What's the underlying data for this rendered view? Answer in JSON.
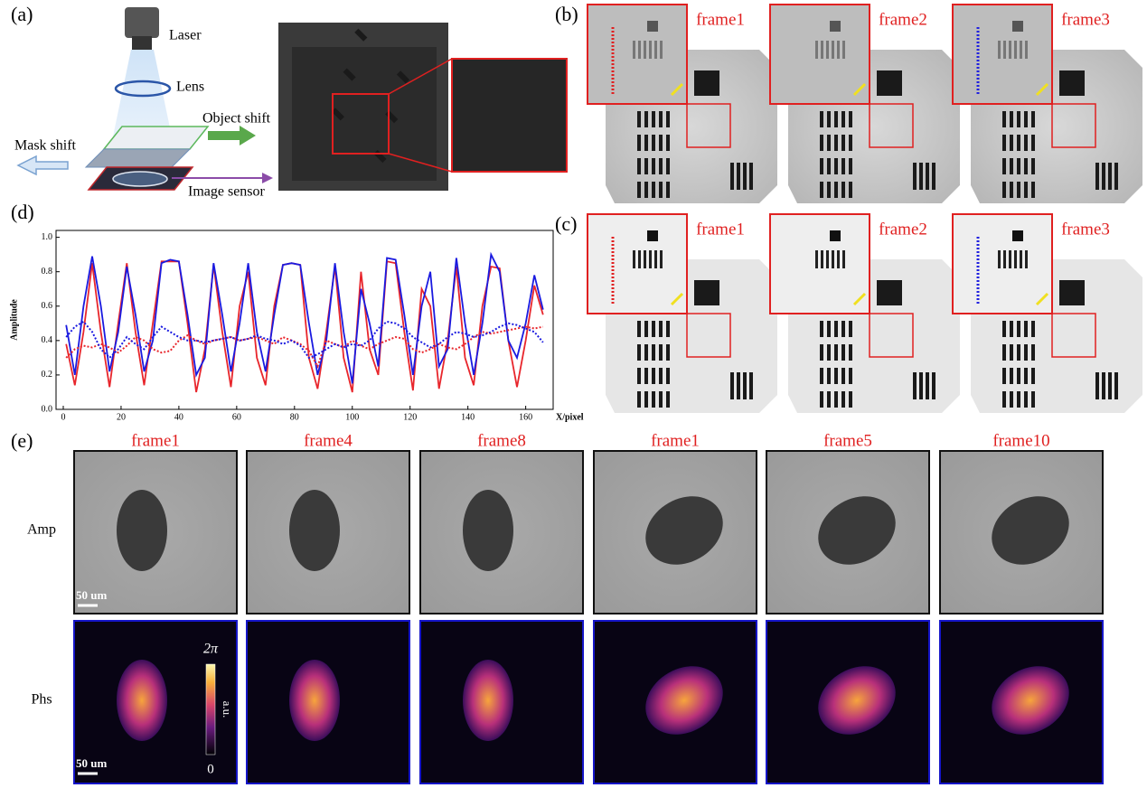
{
  "figure": {
    "panel_a": {
      "label": "(a)",
      "laser": "Laser",
      "lens": "Lens",
      "object_shift": "Object shift",
      "mask_shift": "Mask shift",
      "image_sensor": "Image sensor"
    },
    "panel_b": {
      "label": "(b)",
      "frames": [
        "frame1",
        "frame2",
        "frame3"
      ]
    },
    "panel_c": {
      "label": "(c)",
      "frames": [
        "frame1",
        "frame2",
        "frame3"
      ]
    },
    "panel_d": {
      "label": "(d)"
    },
    "panel_e": {
      "label": "(e)",
      "frames": [
        "frame1",
        "frame4",
        "frame8",
        "frame1",
        "frame5",
        "frame10"
      ],
      "rows": [
        "Amp",
        "Phs"
      ],
      "scale_bars": [
        "50 um",
        "50 um"
      ],
      "colorbar": {
        "max": "2π",
        "unit": "a.u.",
        "min": "0"
      }
    }
  },
  "chart_data": {
    "type": "line",
    "ylabel": "Amplitude",
    "xlabel": "X/pixel",
    "x": [
      1,
      4,
      7,
      10,
      13,
      16,
      19,
      22,
      25,
      28,
      31,
      34,
      37,
      40,
      43,
      46,
      49,
      52,
      55,
      58,
      61,
      64,
      67,
      70,
      73,
      76,
      79,
      82,
      85,
      88,
      91,
      94,
      97,
      100,
      103,
      106,
      109,
      112,
      115,
      118,
      121,
      124,
      127,
      130,
      133,
      136,
      139,
      142,
      145,
      148,
      151,
      154,
      157,
      160,
      163,
      166
    ],
    "series": [
      {
        "color": "#e8262c",
        "linestyle": "solid",
        "values": [
          0.38,
          0.14,
          0.45,
          0.85,
          0.45,
          0.13,
          0.5,
          0.85,
          0.45,
          0.14,
          0.5,
          0.86,
          0.86,
          0.86,
          0.5,
          0.1,
          0.35,
          0.84,
          0.45,
          0.13,
          0.6,
          0.8,
          0.3,
          0.14,
          0.6,
          0.84,
          0.85,
          0.84,
          0.3,
          0.12,
          0.45,
          0.83,
          0.3,
          0.1,
          0.8,
          0.35,
          0.2,
          0.86,
          0.85,
          0.45,
          0.11,
          0.7,
          0.6,
          0.12,
          0.4,
          0.83,
          0.3,
          0.14,
          0.6,
          0.83,
          0.82,
          0.4,
          0.13,
          0.4,
          0.72,
          0.55
        ]
      },
      {
        "color": "#1a1ae0",
        "linestyle": "solid",
        "values": [
          0.49,
          0.2,
          0.6,
          0.89,
          0.6,
          0.22,
          0.45,
          0.83,
          0.55,
          0.22,
          0.4,
          0.85,
          0.87,
          0.86,
          0.55,
          0.2,
          0.3,
          0.85,
          0.55,
          0.22,
          0.5,
          0.85,
          0.45,
          0.22,
          0.55,
          0.84,
          0.85,
          0.84,
          0.5,
          0.2,
          0.4,
          0.85,
          0.45,
          0.15,
          0.7,
          0.5,
          0.25,
          0.88,
          0.87,
          0.55,
          0.2,
          0.6,
          0.8,
          0.25,
          0.35,
          0.88,
          0.5,
          0.2,
          0.5,
          0.9,
          0.8,
          0.4,
          0.3,
          0.5,
          0.78,
          0.58
        ]
      },
      {
        "color": "#e8262c",
        "linestyle": "dotted",
        "values": [
          0.3,
          0.35,
          0.37,
          0.36,
          0.38,
          0.36,
          0.33,
          0.37,
          0.42,
          0.4,
          0.35,
          0.33,
          0.34,
          0.4,
          0.43,
          0.4,
          0.38,
          0.4,
          0.41,
          0.42,
          0.4,
          0.41,
          0.42,
          0.4,
          0.38,
          0.42,
          0.4,
          0.38,
          0.34,
          0.25,
          0.4,
          0.38,
          0.36,
          0.4,
          0.37,
          0.35,
          0.38,
          0.4,
          0.42,
          0.41,
          0.35,
          0.33,
          0.35,
          0.38,
          0.36,
          0.35,
          0.38,
          0.42,
          0.45,
          0.44,
          0.45,
          0.46,
          0.47,
          0.48,
          0.47,
          0.48
        ]
      },
      {
        "color": "#1a1ae0",
        "linestyle": "dotted",
        "values": [
          0.42,
          0.48,
          0.51,
          0.45,
          0.35,
          0.3,
          0.35,
          0.42,
          0.38,
          0.35,
          0.42,
          0.48,
          0.45,
          0.42,
          0.4,
          0.4,
          0.39,
          0.4,
          0.41,
          0.42,
          0.4,
          0.41,
          0.43,
          0.41,
          0.4,
          0.38,
          0.4,
          0.37,
          0.3,
          0.32,
          0.35,
          0.38,
          0.36,
          0.38,
          0.37,
          0.4,
          0.47,
          0.51,
          0.5,
          0.47,
          0.42,
          0.39,
          0.36,
          0.38,
          0.42,
          0.45,
          0.44,
          0.42,
          0.43,
          0.45,
          0.48,
          0.5,
          0.49,
          0.47,
          0.45,
          0.39
        ]
      }
    ],
    "xlim": [
      -2.5,
      169.5
    ],
    "xticks": [
      0,
      20,
      40,
      60,
      80,
      100,
      120,
      140,
      160
    ],
    "ylim": [
      0,
      1.04
    ],
    "yticks": [
      {
        "value": 0,
        "label": "0.0"
      },
      0.2,
      0.4,
      0.6,
      0.8,
      {
        "value": 1,
        "label": "1.0"
      }
    ]
  }
}
